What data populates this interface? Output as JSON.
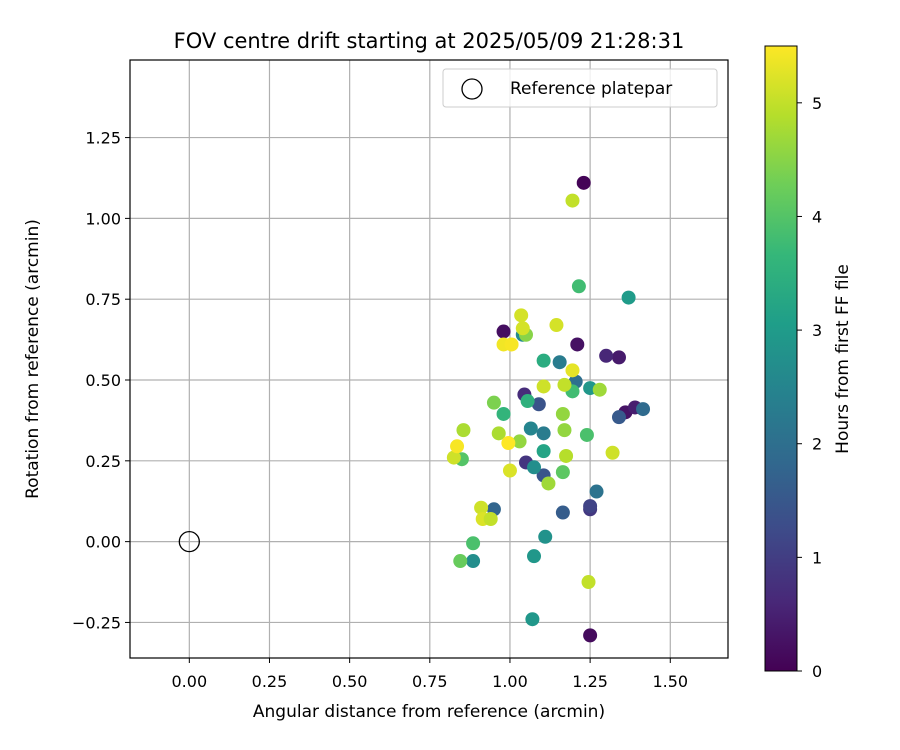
{
  "chart_data": {
    "type": "scatter",
    "title": "FOV centre drift starting at 2025/05/09 21:28:31",
    "xlabel": "Angular distance from reference (arcmin)",
    "ylabel": "Rotation from reference (arcmin)",
    "xlim": [
      -0.185,
      1.68
    ],
    "ylim": [
      -0.36,
      1.49
    ],
    "xticks": [
      "0.00",
      "0.25",
      "0.50",
      "0.75",
      "1.00",
      "1.25",
      "1.50"
    ],
    "xtick_values": [
      0,
      0.25,
      0.5,
      0.75,
      1.0,
      1.25,
      1.5
    ],
    "yticks": [
      "−0.25",
      "0.00",
      "0.25",
      "0.50",
      "0.75",
      "1.00",
      "1.25"
    ],
    "ytick_values": [
      -0.25,
      0,
      0.25,
      0.5,
      0.75,
      1.0,
      1.25
    ],
    "grid": true,
    "colormap": "viridis",
    "colorbar": {
      "label": "Hours from first FF file",
      "min": 0,
      "max": 5.5,
      "ticks": [
        "0",
        "1",
        "2",
        "3",
        "4",
        "5"
      ],
      "tick_values": [
        0,
        1,
        2,
        3,
        4,
        5
      ]
    },
    "legend": {
      "placement": "top-right",
      "entries": [
        {
          "label": "Reference platepar",
          "marker": "open-circle"
        }
      ]
    },
    "reference_point": {
      "x": 0.0,
      "y": 0.0
    },
    "points": [
      {
        "x": 1.23,
        "y": 1.11,
        "h": 0.05
      },
      {
        "x": 1.25,
        "y": -0.29,
        "h": 0.15
      },
      {
        "x": 0.98,
        "y": 0.65,
        "h": 0.2
      },
      {
        "x": 1.21,
        "y": 0.61,
        "h": 0.25
      },
      {
        "x": 1.34,
        "y": 0.57,
        "h": 0.4
      },
      {
        "x": 1.36,
        "y": 0.4,
        "h": 0.3
      },
      {
        "x": 1.39,
        "y": 0.415,
        "h": 0.45
      },
      {
        "x": 1.3,
        "y": 0.575,
        "h": 0.6
      },
      {
        "x": 1.045,
        "y": 0.455,
        "h": 0.7
      },
      {
        "x": 1.05,
        "y": 0.245,
        "h": 0.85
      },
      {
        "x": 1.25,
        "y": 0.1,
        "h": 0.9
      },
      {
        "x": 1.25,
        "y": 0.11,
        "h": 1.1
      },
      {
        "x": 1.09,
        "y": 0.425,
        "h": 1.4
      },
      {
        "x": 1.105,
        "y": 0.205,
        "h": 1.45
      },
      {
        "x": 1.34,
        "y": 0.385,
        "h": 1.55
      },
      {
        "x": 1.165,
        "y": 0.09,
        "h": 1.6
      },
      {
        "x": 1.415,
        "y": 0.41,
        "h": 1.9
      },
      {
        "x": 1.205,
        "y": 0.495,
        "h": 2.0
      },
      {
        "x": 1.27,
        "y": 0.155,
        "h": 2.1
      },
      {
        "x": 0.95,
        "y": 0.1,
        "h": 1.8
      },
      {
        "x": 1.155,
        "y": 0.555,
        "h": 2.3
      },
      {
        "x": 1.105,
        "y": 0.335,
        "h": 2.3
      },
      {
        "x": 1.065,
        "y": 0.35,
        "h": 2.5
      },
      {
        "x": 1.04,
        "y": 0.64,
        "h": 2.6
      },
      {
        "x": 1.075,
        "y": 0.23,
        "h": 2.7
      },
      {
        "x": 0.885,
        "y": -0.06,
        "h": 2.7
      },
      {
        "x": 1.075,
        "y": -0.045,
        "h": 2.9
      },
      {
        "x": 1.07,
        "y": -0.24,
        "h": 2.9
      },
      {
        "x": 1.11,
        "y": 0.015,
        "h": 2.8
      },
      {
        "x": 1.37,
        "y": 0.755,
        "h": 3.0
      },
      {
        "x": 1.25,
        "y": 0.475,
        "h": 2.9
      },
      {
        "x": 1.105,
        "y": 0.28,
        "h": 3.2
      },
      {
        "x": 1.105,
        "y": 0.56,
        "h": 3.4
      },
      {
        "x": 1.055,
        "y": 0.435,
        "h": 3.5
      },
      {
        "x": 0.98,
        "y": 0.395,
        "h": 3.6
      },
      {
        "x": 1.195,
        "y": 0.465,
        "h": 3.8
      },
      {
        "x": 1.24,
        "y": 0.33,
        "h": 3.9
      },
      {
        "x": 0.885,
        "y": -0.005,
        "h": 3.9
      },
      {
        "x": 1.215,
        "y": 0.79,
        "h": 3.8
      },
      {
        "x": 0.85,
        "y": 0.255,
        "h": 4.0
      },
      {
        "x": 0.845,
        "y": -0.06,
        "h": 4.2
      },
      {
        "x": 1.165,
        "y": 0.215,
        "h": 4.1
      },
      {
        "x": 1.05,
        "y": 0.64,
        "h": 4.5
      },
      {
        "x": 0.95,
        "y": 0.43,
        "h": 4.4
      },
      {
        "x": 1.165,
        "y": 0.395,
        "h": 4.6
      },
      {
        "x": 1.17,
        "y": 0.345,
        "h": 4.6
      },
      {
        "x": 1.28,
        "y": 0.47,
        "h": 4.7
      },
      {
        "x": 1.03,
        "y": 0.31,
        "h": 4.6
      },
      {
        "x": 0.855,
        "y": 0.345,
        "h": 4.8
      },
      {
        "x": 0.965,
        "y": 0.335,
        "h": 4.8
      },
      {
        "x": 1.12,
        "y": 0.18,
        "h": 4.7
      },
      {
        "x": 1.175,
        "y": 0.265,
        "h": 4.9
      },
      {
        "x": 1.17,
        "y": 0.485,
        "h": 5.0
      },
      {
        "x": 1.195,
        "y": 1.055,
        "h": 5.0
      },
      {
        "x": 1.245,
        "y": -0.125,
        "h": 5.0
      },
      {
        "x": 1.32,
        "y": 0.275,
        "h": 5.1
      },
      {
        "x": 1.105,
        "y": 0.48,
        "h": 5.1
      },
      {
        "x": 1.145,
        "y": 0.67,
        "h": 5.15
      },
      {
        "x": 0.825,
        "y": 0.26,
        "h": 5.1
      },
      {
        "x": 0.91,
        "y": 0.105,
        "h": 5.1
      },
      {
        "x": 0.915,
        "y": 0.07,
        "h": 5.2
      },
      {
        "x": 0.94,
        "y": 0.07,
        "h": 5.0
      },
      {
        "x": 1.0,
        "y": 0.22,
        "h": 5.2
      },
      {
        "x": 1.035,
        "y": 0.7,
        "h": 5.15
      },
      {
        "x": 1.04,
        "y": 0.66,
        "h": 5.15
      },
      {
        "x": 1.195,
        "y": 0.53,
        "h": 5.3
      },
      {
        "x": 0.98,
        "y": 0.61,
        "h": 5.4
      },
      {
        "x": 1.005,
        "y": 0.61,
        "h": 5.45
      },
      {
        "x": 0.835,
        "y": 0.295,
        "h": 5.45
      },
      {
        "x": 0.995,
        "y": 0.305,
        "h": 5.5
      }
    ]
  }
}
